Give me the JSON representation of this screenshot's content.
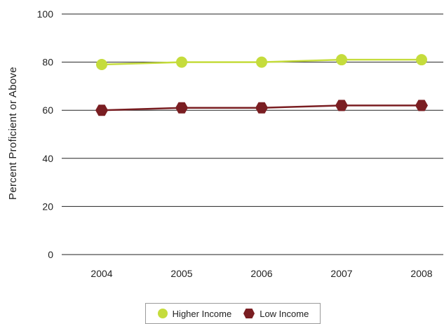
{
  "chart_data": {
    "type": "line",
    "x": [
      "2004",
      "2005",
      "2006",
      "2007",
      "2008"
    ],
    "series": [
      {
        "name": "Higher Income",
        "values": [
          79,
          80,
          80,
          81,
          81
        ],
        "color": "#c5dc3c",
        "marker": "circle"
      },
      {
        "name": "Low Income",
        "values": [
          60,
          61,
          61,
          62,
          62
        ],
        "color": "#7a1e22",
        "marker": "hexagon"
      }
    ],
    "title": "",
    "xlabel": "",
    "ylabel": "Percent Proficient or Above",
    "ylim": [
      0,
      100
    ],
    "yticks": [
      0,
      20,
      40,
      60,
      80,
      100
    ],
    "grid": "horizontal",
    "legend_position": "bottom"
  }
}
